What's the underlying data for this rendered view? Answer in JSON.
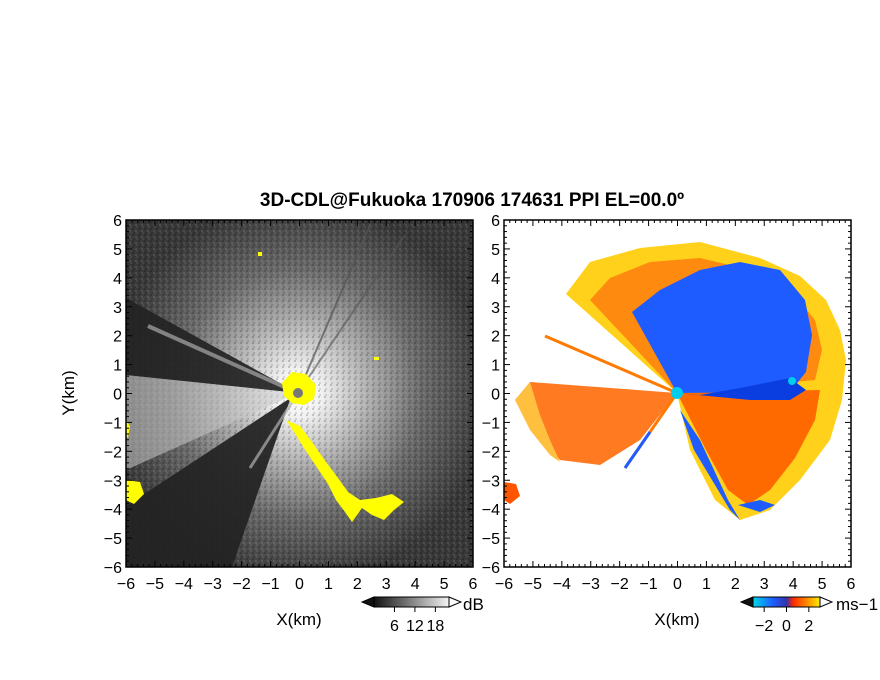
{
  "title": "3D-CDL@Fukuoka 170906 174631 PPI EL=00.0º",
  "colors": {
    "mask_yellow": "#ffff00",
    "neg_blue": "#1e5cff",
    "pos_orange": "#ff7700",
    "radar_center": "#00ccee"
  },
  "chart_data": [
    {
      "type": "heatmap",
      "name": "reflectivity",
      "xlabel": "X(km)",
      "ylabel": "Y(km)",
      "xlim": [
        -6,
        6
      ],
      "ylim": [
        -6,
        6
      ],
      "xticks": [
        "−6",
        "−5",
        "−4",
        "−3",
        "−2",
        "−1",
        "0",
        "1",
        "2",
        "3",
        "4",
        "5",
        "6"
      ],
      "yticks": [
        "−6",
        "−5",
        "−4",
        "−3",
        "−2",
        "−1",
        "0",
        "1",
        "2",
        "3",
        "4",
        "5",
        "6"
      ],
      "colorbar": {
        "unit": "dB",
        "ticks": [
          "6",
          "12",
          "18"
        ],
        "tick_values": [
          6,
          12,
          18
        ],
        "range": [
          0,
          22
        ],
        "palette": "gray"
      }
    },
    {
      "type": "heatmap",
      "name": "doppler-velocity",
      "xlabel": "X(km)",
      "ylabel": "",
      "xlim": [
        -6,
        6
      ],
      "ylim": [
        -6,
        6
      ],
      "xticks": [
        "−6",
        "−5",
        "−4",
        "−3",
        "−2",
        "−1",
        "0",
        "1",
        "2",
        "3",
        "4",
        "5",
        "6"
      ],
      "yticks": [
        "−6",
        "−5",
        "−4",
        "−3",
        "−2",
        "−1",
        "0",
        "1",
        "2",
        "3",
        "4",
        "5",
        "6"
      ],
      "colorbar": {
        "unit": "ms−1",
        "ticks": [
          "−2",
          "0",
          "2"
        ],
        "tick_values": [
          -2,
          0,
          2
        ],
        "range": [
          -3,
          3
        ],
        "palette": "cyan-blue-red-orange-yellow"
      }
    }
  ]
}
